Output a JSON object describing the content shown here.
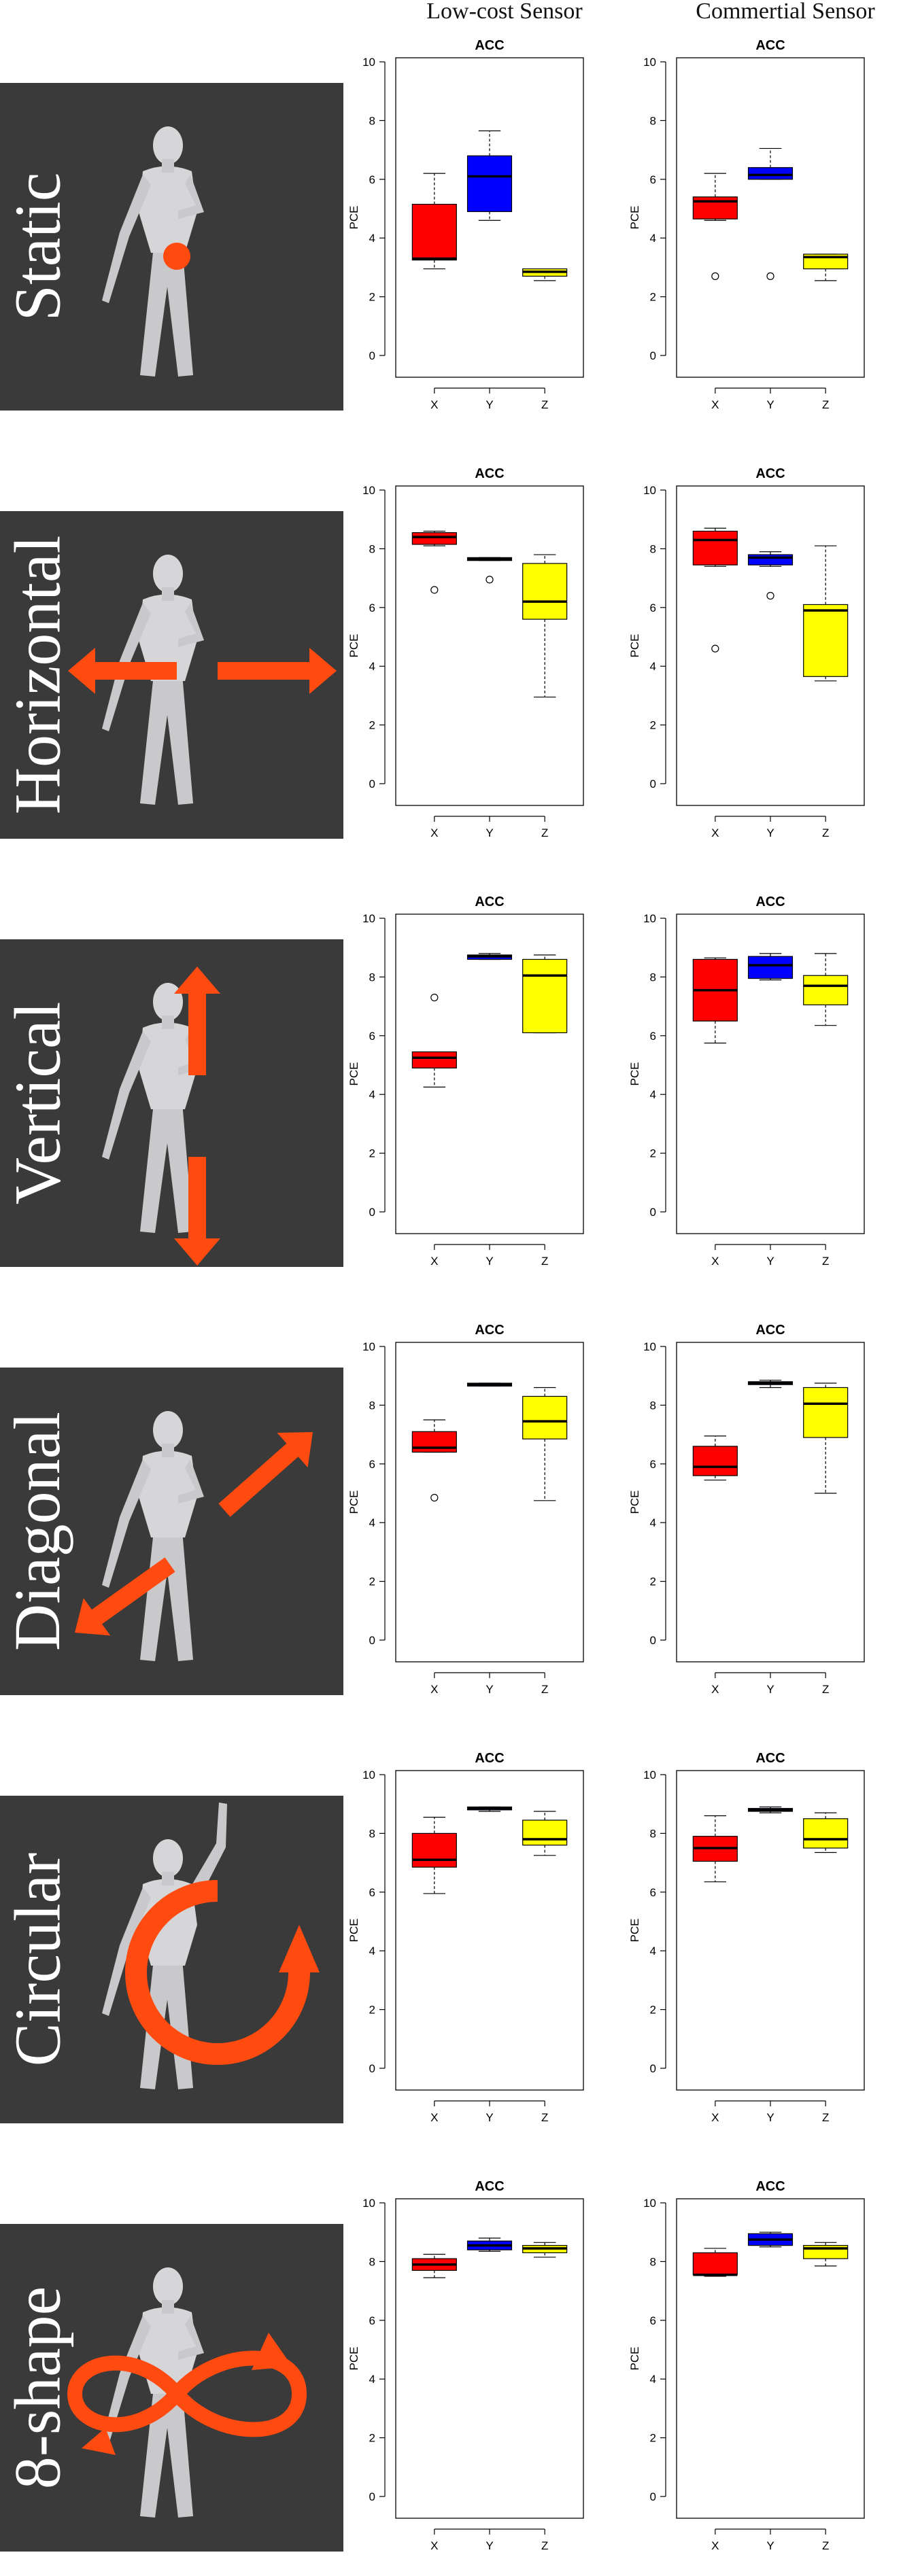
{
  "columns": [
    "Low-cost Sensor",
    "Commertial Sensor"
  ],
  "rows": [
    {
      "label": "Static"
    },
    {
      "label": "Horizontal"
    },
    {
      "label": "Vertical"
    },
    {
      "label": "Diagonal"
    },
    {
      "label": "Circular"
    },
    {
      "label": "8-shape"
    }
  ],
  "colors": {
    "X": "#ff0000",
    "Y": "#0000ff",
    "Z": "#ffff00",
    "panel_bg": "#3a3a3a",
    "arrow": "#ff4a10"
  },
  "chart_data": [
    {
      "row": "Static",
      "column": "Low-cost Sensor",
      "type": "boxplot",
      "title": "ACC",
      "ylabel": "PCE",
      "ylim": [
        0,
        10
      ],
      "yticks": [
        0,
        2,
        4,
        6,
        8,
        10
      ],
      "categories": [
        "X",
        "Y",
        "Z"
      ],
      "boxes": [
        {
          "category": "X",
          "min": 2.95,
          "q1": 3.25,
          "median": 3.3,
          "q3": 5.15,
          "max": 6.2,
          "outliers": []
        },
        {
          "category": "Y",
          "min": 4.6,
          "q1": 4.9,
          "median": 6.1,
          "q3": 6.8,
          "max": 7.65,
          "outliers": []
        },
        {
          "category": "Z",
          "min": 2.55,
          "q1": 2.7,
          "median": 2.85,
          "q3": 2.95,
          "max": 2.95,
          "outliers": []
        }
      ]
    },
    {
      "row": "Static",
      "column": "Commertial Sensor",
      "type": "boxplot",
      "title": "ACC",
      "ylabel": "PCE",
      "ylim": [
        0,
        10
      ],
      "yticks": [
        0,
        2,
        4,
        6,
        8,
        10
      ],
      "categories": [
        "X",
        "Y",
        "Z"
      ],
      "boxes": [
        {
          "category": "X",
          "min": 4.6,
          "q1": 4.65,
          "median": 5.25,
          "q3": 5.4,
          "max": 6.2,
          "outliers": [
            2.7
          ]
        },
        {
          "category": "Y",
          "min": 6.0,
          "q1": 6.0,
          "median": 6.15,
          "q3": 6.4,
          "max": 7.05,
          "outliers": [
            2.7
          ]
        },
        {
          "category": "Z",
          "min": 2.55,
          "q1": 2.95,
          "median": 3.35,
          "q3": 3.45,
          "max": 3.45,
          "outliers": []
        }
      ]
    },
    {
      "row": "Horizontal",
      "column": "Low-cost Sensor",
      "type": "boxplot",
      "title": "ACC",
      "ylabel": "PCE",
      "ylim": [
        0,
        10
      ],
      "yticks": [
        0,
        2,
        4,
        6,
        8,
        10
      ],
      "categories": [
        "X",
        "Y",
        "Z"
      ],
      "boxes": [
        {
          "category": "X",
          "min": 8.1,
          "q1": 8.15,
          "median": 8.4,
          "q3": 8.55,
          "max": 8.6,
          "outliers": [
            6.6
          ]
        },
        {
          "category": "Y",
          "min": 7.6,
          "q1": 7.6,
          "median": 7.65,
          "q3": 7.7,
          "max": 7.7,
          "outliers": [
            6.95
          ]
        },
        {
          "category": "Z",
          "min": 2.95,
          "q1": 5.6,
          "median": 6.2,
          "q3": 7.5,
          "max": 7.8,
          "outliers": []
        }
      ]
    },
    {
      "row": "Horizontal",
      "column": "Commertial Sensor",
      "type": "boxplot",
      "title": "ACC",
      "ylabel": "PCE",
      "ylim": [
        0,
        10
      ],
      "yticks": [
        0,
        2,
        4,
        6,
        8,
        10
      ],
      "categories": [
        "X",
        "Y",
        "Z"
      ],
      "boxes": [
        {
          "category": "X",
          "min": 7.4,
          "q1": 7.45,
          "median": 8.3,
          "q3": 8.6,
          "max": 8.7,
          "outliers": [
            4.6
          ]
        },
        {
          "category": "Y",
          "min": 7.4,
          "q1": 7.45,
          "median": 7.7,
          "q3": 7.8,
          "max": 7.9,
          "outliers": [
            6.4
          ]
        },
        {
          "category": "Z",
          "min": 3.5,
          "q1": 3.65,
          "median": 5.9,
          "q3": 6.1,
          "max": 8.1,
          "outliers": []
        }
      ]
    },
    {
      "row": "Vertical",
      "column": "Low-cost Sensor",
      "type": "boxplot",
      "title": "ACC",
      "ylabel": "PCE",
      "ylim": [
        0,
        10
      ],
      "yticks": [
        0,
        2,
        4,
        6,
        8,
        10
      ],
      "categories": [
        "X",
        "Y",
        "Z"
      ],
      "boxes": [
        {
          "category": "X",
          "min": 4.25,
          "q1": 4.9,
          "median": 5.25,
          "q3": 5.45,
          "max": 5.45,
          "outliers": [
            7.3
          ]
        },
        {
          "category": "Y",
          "min": 8.6,
          "q1": 8.6,
          "median": 8.7,
          "q3": 8.75,
          "max": 8.8,
          "outliers": []
        },
        {
          "category": "Z",
          "min": 6.1,
          "q1": 6.1,
          "median": 8.05,
          "q3": 8.6,
          "max": 8.75,
          "outliers": []
        }
      ]
    },
    {
      "row": "Vertical",
      "column": "Commertial Sensor",
      "type": "boxplot",
      "title": "ACC",
      "ylabel": "PCE",
      "ylim": [
        0,
        10
      ],
      "yticks": [
        0,
        2,
        4,
        6,
        8,
        10
      ],
      "categories": [
        "X",
        "Y",
        "Z"
      ],
      "boxes": [
        {
          "category": "X",
          "min": 5.75,
          "q1": 6.5,
          "median": 7.55,
          "q3": 8.6,
          "max": 8.65,
          "outliers": []
        },
        {
          "category": "Y",
          "min": 7.9,
          "q1": 7.95,
          "median": 8.4,
          "q3": 8.7,
          "max": 8.8,
          "outliers": []
        },
        {
          "category": "Z",
          "min": 6.35,
          "q1": 7.05,
          "median": 7.7,
          "q3": 8.05,
          "max": 8.8,
          "outliers": []
        }
      ]
    },
    {
      "row": "Diagonal",
      "column": "Low-cost Sensor",
      "type": "boxplot",
      "title": "ACC",
      "ylabel": "PCE",
      "ylim": [
        0,
        10
      ],
      "yticks": [
        0,
        2,
        4,
        6,
        8,
        10
      ],
      "categories": [
        "X",
        "Y",
        "Z"
      ],
      "boxes": [
        {
          "category": "X",
          "min": 6.4,
          "q1": 6.4,
          "median": 6.55,
          "q3": 7.1,
          "max": 7.5,
          "outliers": [
            4.85
          ]
        },
        {
          "category": "Y",
          "min": 8.65,
          "q1": 8.65,
          "median": 8.7,
          "q3": 8.75,
          "max": 8.75,
          "outliers": []
        },
        {
          "category": "Z",
          "min": 4.75,
          "q1": 6.85,
          "median": 7.45,
          "q3": 8.3,
          "max": 8.6,
          "outliers": []
        }
      ]
    },
    {
      "row": "Diagonal",
      "column": "Commertial Sensor",
      "type": "boxplot",
      "title": "ACC",
      "ylabel": "PCE",
      "ylim": [
        0,
        10
      ],
      "yticks": [
        0,
        2,
        4,
        6,
        8,
        10
      ],
      "categories": [
        "X",
        "Y",
        "Z"
      ],
      "boxes": [
        {
          "category": "X",
          "min": 5.45,
          "q1": 5.6,
          "median": 5.9,
          "q3": 6.6,
          "max": 6.95,
          "outliers": []
        },
        {
          "category": "Y",
          "min": 8.6,
          "q1": 8.7,
          "median": 8.75,
          "q3": 8.8,
          "max": 8.85,
          "outliers": []
        },
        {
          "category": "Z",
          "min": 5.0,
          "q1": 6.9,
          "median": 8.05,
          "q3": 8.6,
          "max": 8.75,
          "outliers": []
        }
      ]
    },
    {
      "row": "Circular",
      "column": "Low-cost Sensor",
      "type": "boxplot",
      "title": "ACC",
      "ylabel": "PCE",
      "ylim": [
        0,
        10
      ],
      "yticks": [
        0,
        2,
        4,
        6,
        8,
        10
      ],
      "categories": [
        "X",
        "Y",
        "Z"
      ],
      "boxes": [
        {
          "category": "X",
          "min": 5.95,
          "q1": 6.85,
          "median": 7.1,
          "q3": 8.0,
          "max": 8.55,
          "outliers": []
        },
        {
          "category": "Y",
          "min": 8.75,
          "q1": 8.8,
          "median": 8.85,
          "q3": 8.9,
          "max": 8.9,
          "outliers": []
        },
        {
          "category": "Z",
          "min": 7.25,
          "q1": 7.6,
          "median": 7.8,
          "q3": 8.45,
          "max": 8.75,
          "outliers": []
        }
      ]
    },
    {
      "row": "Circular",
      "column": "Commertial Sensor",
      "type": "boxplot",
      "title": "ACC",
      "ylabel": "PCE",
      "ylim": [
        0,
        10
      ],
      "yticks": [
        0,
        2,
        4,
        6,
        8,
        10
      ],
      "categories": [
        "X",
        "Y",
        "Z"
      ],
      "boxes": [
        {
          "category": "X",
          "min": 6.35,
          "q1": 7.05,
          "median": 7.5,
          "q3": 7.9,
          "max": 8.6,
          "outliers": []
        },
        {
          "category": "Y",
          "min": 8.7,
          "q1": 8.75,
          "median": 8.8,
          "q3": 8.85,
          "max": 8.9,
          "outliers": []
        },
        {
          "category": "Z",
          "min": 7.35,
          "q1": 7.5,
          "median": 7.8,
          "q3": 8.5,
          "max": 8.7,
          "outliers": []
        }
      ]
    },
    {
      "row": "8-shape",
      "column": "Low-cost Sensor",
      "type": "boxplot",
      "title": "ACC",
      "ylabel": "PCE",
      "ylim": [
        0,
        10
      ],
      "yticks": [
        0,
        2,
        4,
        6,
        8,
        10
      ],
      "categories": [
        "X",
        "Y",
        "Z"
      ],
      "boxes": [
        {
          "category": "X",
          "min": 7.45,
          "q1": 7.7,
          "median": 7.9,
          "q3": 8.1,
          "max": 8.25,
          "outliers": []
        },
        {
          "category": "Y",
          "min": 8.35,
          "q1": 8.4,
          "median": 8.55,
          "q3": 8.7,
          "max": 8.8,
          "outliers": []
        },
        {
          "category": "Z",
          "min": 8.15,
          "q1": 8.3,
          "median": 8.45,
          "q3": 8.55,
          "max": 8.65,
          "outliers": []
        }
      ]
    },
    {
      "row": "8-shape",
      "column": "Commertial Sensor",
      "type": "boxplot",
      "title": "ACC",
      "ylabel": "PCE",
      "ylim": [
        0,
        10
      ],
      "yticks": [
        0,
        2,
        4,
        6,
        8,
        10
      ],
      "categories": [
        "X",
        "Y",
        "Z"
      ],
      "boxes": [
        {
          "category": "X",
          "min": 7.5,
          "q1": 7.55,
          "median": 7.55,
          "q3": 8.3,
          "max": 8.45,
          "outliers": []
        },
        {
          "category": "Y",
          "min": 8.5,
          "q1": 8.55,
          "median": 8.75,
          "q3": 8.95,
          "max": 9.0,
          "outliers": []
        },
        {
          "category": "Z",
          "min": 7.85,
          "q1": 8.1,
          "median": 8.45,
          "q3": 8.55,
          "max": 8.65,
          "outliers": []
        }
      ]
    }
  ]
}
